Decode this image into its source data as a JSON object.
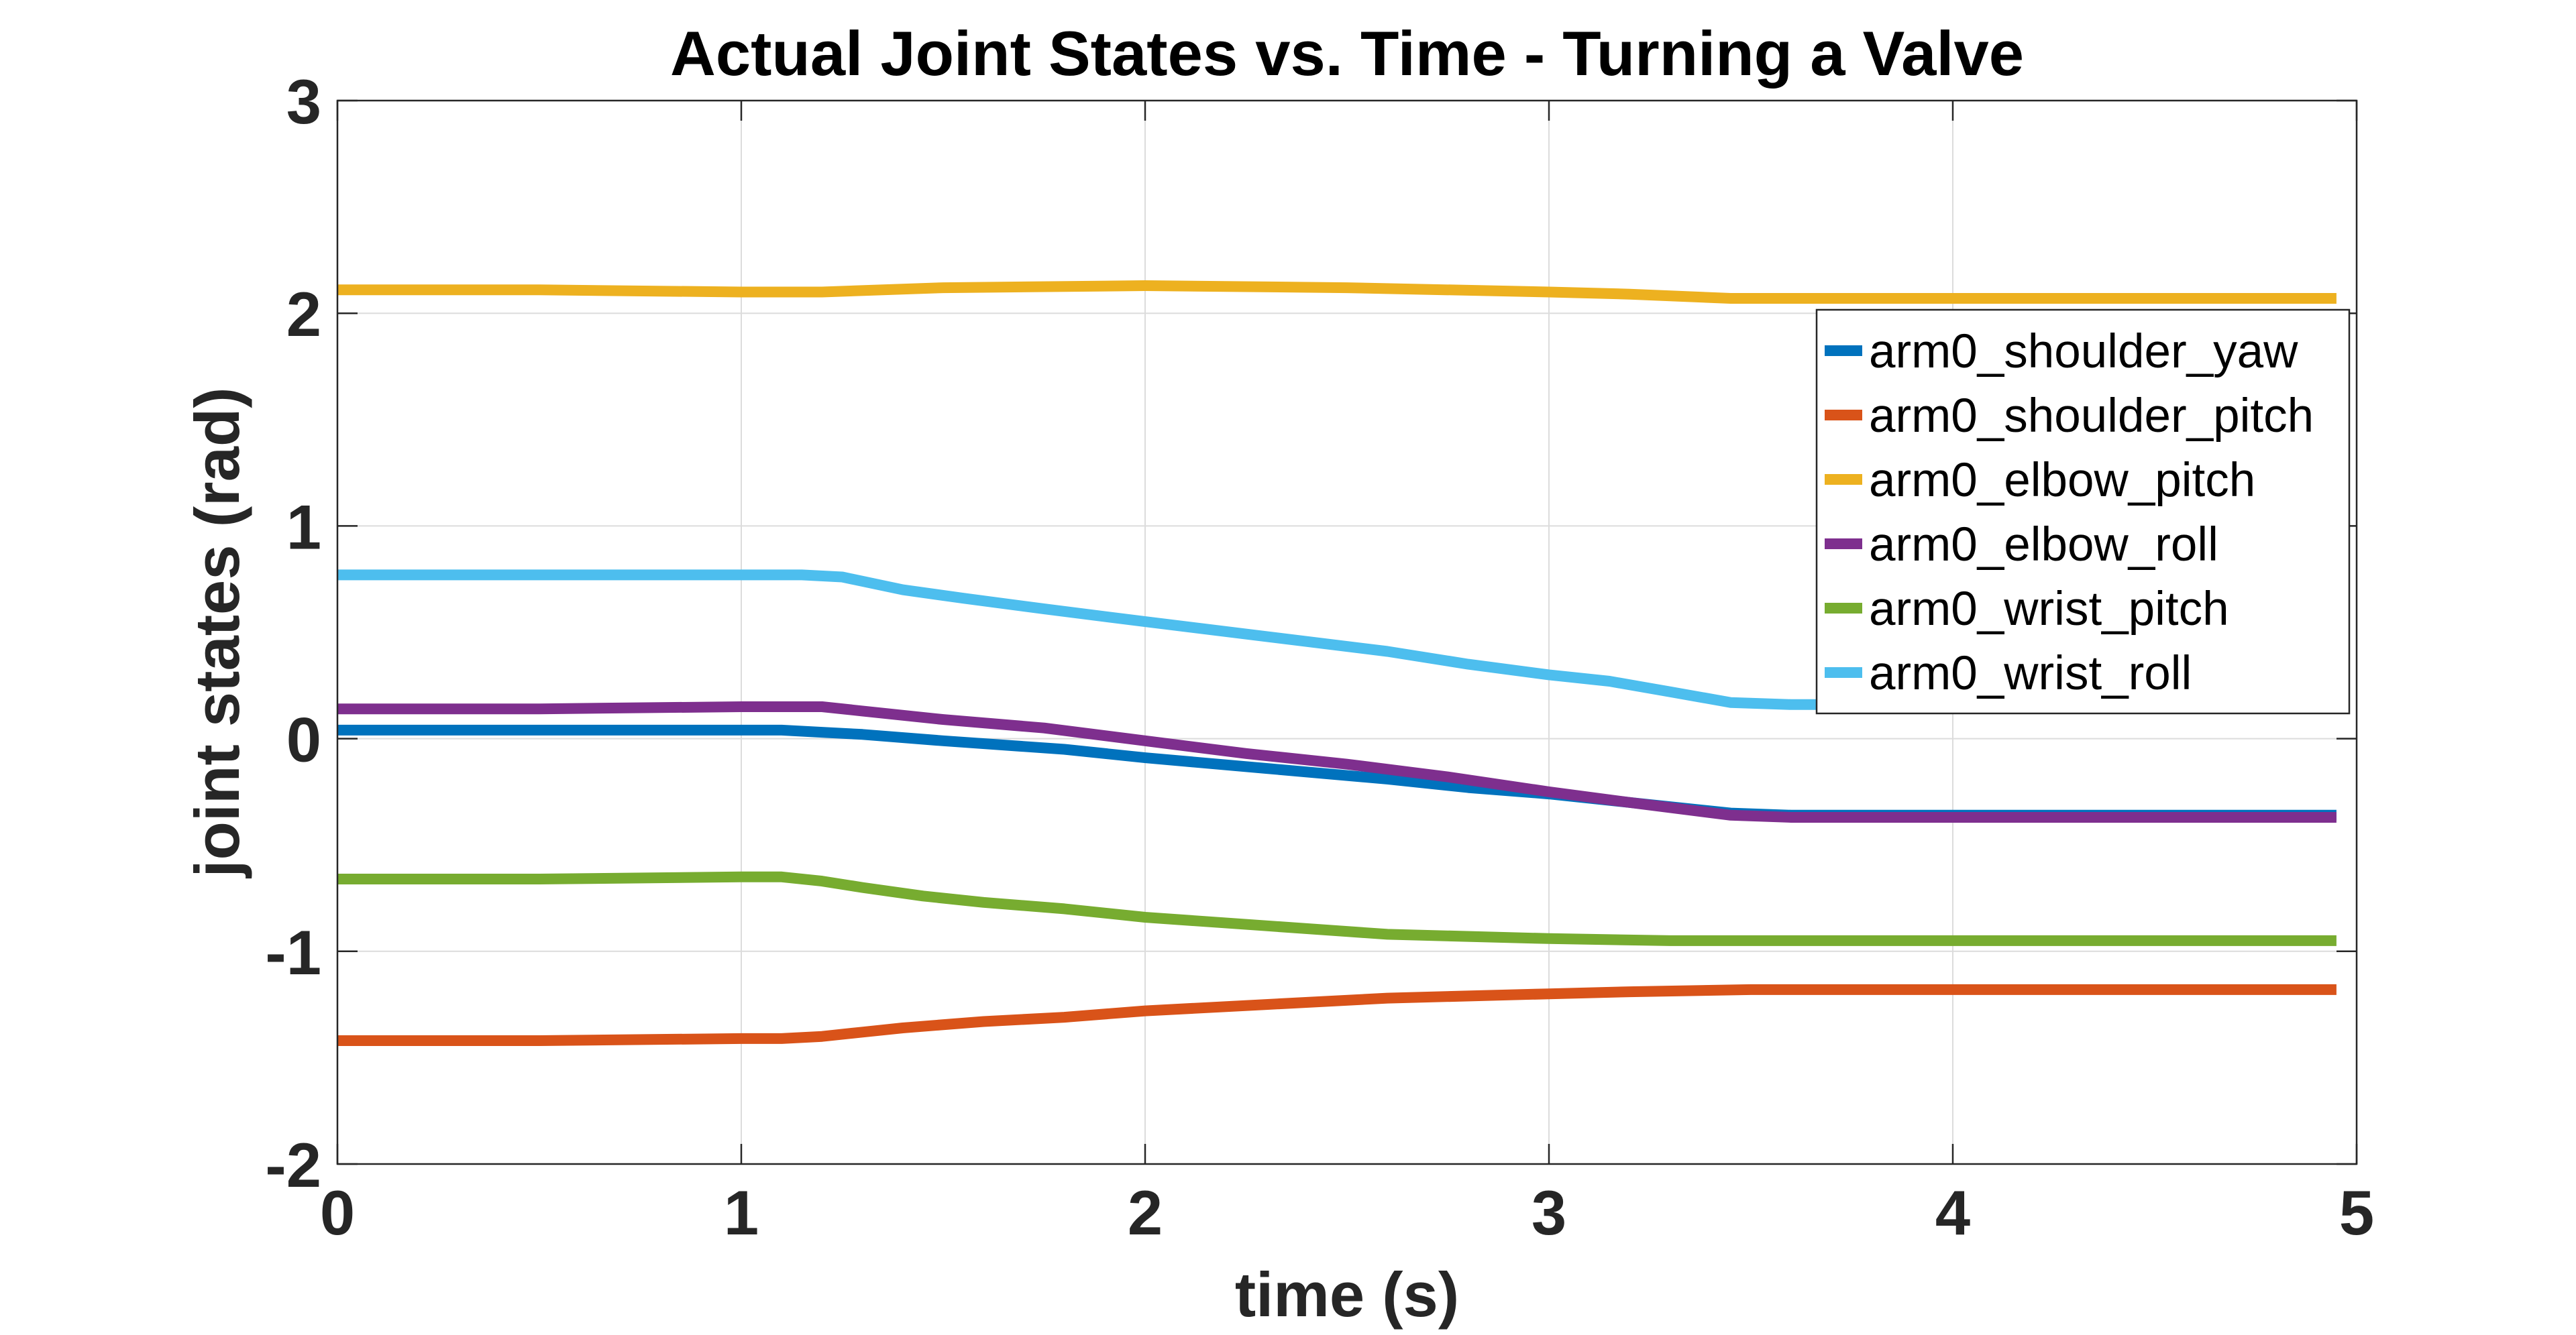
{
  "chart_data": {
    "type": "line",
    "title": "Actual Joint States vs. Time - Turning a Valve",
    "xlabel": "time (s)",
    "ylabel": "joint states (rad)",
    "xlim": [
      0,
      5
    ],
    "ylim": [
      -2,
      3
    ],
    "xticks": [
      "0",
      "1",
      "2",
      "3",
      "4",
      "5"
    ],
    "yticks": [
      "-2",
      "-1",
      "0",
      "1",
      "2",
      "3"
    ],
    "grid": true,
    "legend_position": "top-right",
    "series": [
      {
        "name": "arm0_shoulder_yaw",
        "color": "#0072BD",
        "x": [
          0,
          0.5,
          1.0,
          1.1,
          1.2,
          1.3,
          1.5,
          1.8,
          2.0,
          2.3,
          2.6,
          2.8,
          3.0,
          3.2,
          3.45,
          3.6,
          4.0,
          4.5,
          4.95
        ],
        "y": [
          0.04,
          0.04,
          0.04,
          0.04,
          0.03,
          0.02,
          -0.01,
          -0.05,
          -0.09,
          -0.14,
          -0.19,
          -0.23,
          -0.26,
          -0.3,
          -0.35,
          -0.36,
          -0.36,
          -0.36,
          -0.36
        ]
      },
      {
        "name": "arm0_shoulder_pitch",
        "color": "#D95319",
        "x": [
          0,
          0.5,
          1.0,
          1.1,
          1.2,
          1.3,
          1.4,
          1.6,
          1.8,
          2.0,
          2.3,
          2.6,
          3.0,
          3.2,
          3.5,
          4.0,
          4.5,
          4.95
        ],
        "y": [
          -1.42,
          -1.42,
          -1.41,
          -1.41,
          -1.4,
          -1.38,
          -1.36,
          -1.33,
          -1.31,
          -1.28,
          -1.25,
          -1.22,
          -1.2,
          -1.19,
          -1.18,
          -1.18,
          -1.18,
          -1.18
        ]
      },
      {
        "name": "arm0_elbow_pitch",
        "color": "#EDB120",
        "x": [
          0,
          0.5,
          1.0,
          1.2,
          1.5,
          2.0,
          2.5,
          3.0,
          3.2,
          3.45,
          3.7,
          4.0,
          4.5,
          4.95
        ],
        "y": [
          2.11,
          2.11,
          2.1,
          2.1,
          2.12,
          2.13,
          2.12,
          2.1,
          2.09,
          2.07,
          2.07,
          2.07,
          2.07,
          2.07
        ]
      },
      {
        "name": "arm0_elbow_roll",
        "color": "#7E2F8E",
        "x": [
          0,
          0.5,
          1.0,
          1.2,
          1.3,
          1.5,
          1.75,
          2.0,
          2.25,
          2.5,
          2.75,
          3.0,
          3.2,
          3.45,
          3.6,
          4.0,
          4.5,
          4.95
        ],
        "y": [
          0.14,
          0.14,
          0.15,
          0.15,
          0.13,
          0.09,
          0.05,
          -0.01,
          -0.07,
          -0.12,
          -0.18,
          -0.25,
          -0.3,
          -0.36,
          -0.37,
          -0.37,
          -0.37,
          -0.37
        ]
      },
      {
        "name": "arm0_wrist_pitch",
        "color": "#77AC30",
        "x": [
          0,
          0.5,
          1.0,
          1.1,
          1.2,
          1.3,
          1.45,
          1.6,
          1.8,
          2.0,
          2.3,
          2.6,
          3.0,
          3.3,
          3.6,
          4.0,
          4.5,
          4.95
        ],
        "y": [
          -0.66,
          -0.66,
          -0.65,
          -0.65,
          -0.67,
          -0.7,
          -0.74,
          -0.77,
          -0.8,
          -0.84,
          -0.88,
          -0.92,
          -0.94,
          -0.95,
          -0.95,
          -0.95,
          -0.95,
          -0.95
        ]
      },
      {
        "name": "arm0_wrist_roll",
        "color": "#4DBEEE",
        "x": [
          0,
          0.5,
          1.0,
          1.15,
          1.25,
          1.4,
          1.55,
          1.75,
          2.0,
          2.3,
          2.6,
          2.8,
          3.0,
          3.15,
          3.3,
          3.45,
          3.6,
          4.0,
          4.5,
          4.95
        ],
        "y": [
          0.77,
          0.77,
          0.77,
          0.77,
          0.76,
          0.7,
          0.66,
          0.61,
          0.55,
          0.48,
          0.41,
          0.35,
          0.3,
          0.27,
          0.22,
          0.17,
          0.16,
          0.16,
          0.16,
          0.16
        ]
      }
    ]
  }
}
